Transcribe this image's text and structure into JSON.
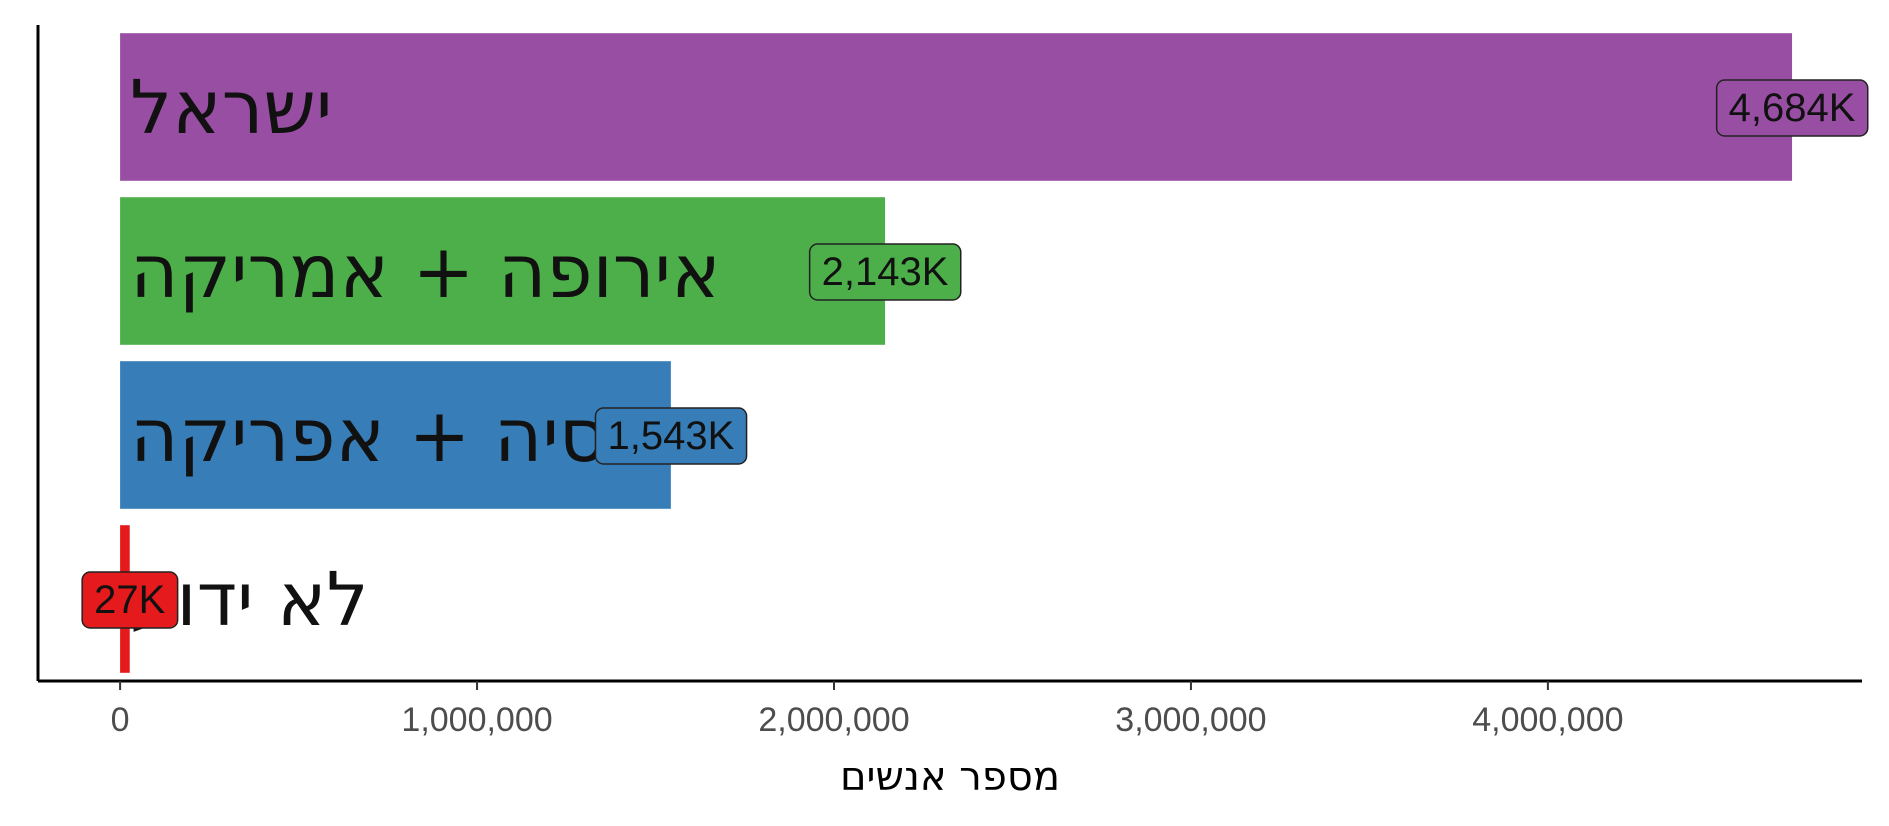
{
  "chart_data": {
    "type": "bar",
    "orientation": "horizontal",
    "categories": [
      "ישראל",
      "אירופה + אמריקה",
      "אסיה + אפריקה",
      "לא ידוע"
    ],
    "values": [
      4684000,
      2143000,
      1543000,
      27000
    ],
    "data_labels": [
      "4,684K",
      "2,143K",
      "1,543K",
      "27K"
    ],
    "colors": [
      "#984EA3",
      "#4DAF4A",
      "#377EB8",
      "#E41A1C"
    ],
    "title": "",
    "xlabel": "מספר אנשים",
    "ylabel": "",
    "xlim": [
      -230000,
      4880000
    ],
    "x_ticks": [
      0,
      1000000,
      2000000,
      3000000,
      4000000
    ],
    "x_tick_labels": [
      "0",
      "1,000,000",
      "2,000,000",
      "3,000,000",
      "4,000,000"
    ],
    "grid": false,
    "legend": "none"
  }
}
